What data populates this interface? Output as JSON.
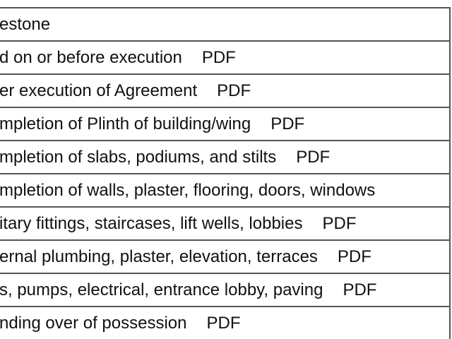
{
  "header": {
    "title": "estone"
  },
  "rows": [
    {
      "text": "d on or before execution",
      "link": "PDF"
    },
    {
      "text": "er execution of Agreement",
      "link": "PDF"
    },
    {
      "text": "mpletion of Plinth of building/wing",
      "link": "PDF"
    },
    {
      "text": "mpletion of slabs, podiums, and stilts",
      "link": "PDF"
    },
    {
      "text": "mpletion of walls, plaster, flooring, doors, windows"
    },
    {
      "text": "itary fittings, staircases, lift wells, lobbies",
      "link": "PDF"
    },
    {
      "text": "ernal plumbing, plaster, elevation, terraces",
      "link": "PDF"
    },
    {
      "text": "s, pumps, electrical, entrance lobby, paving",
      "link": "PDF"
    },
    {
      "text": "nding over of possession",
      "link": "PDF"
    }
  ]
}
